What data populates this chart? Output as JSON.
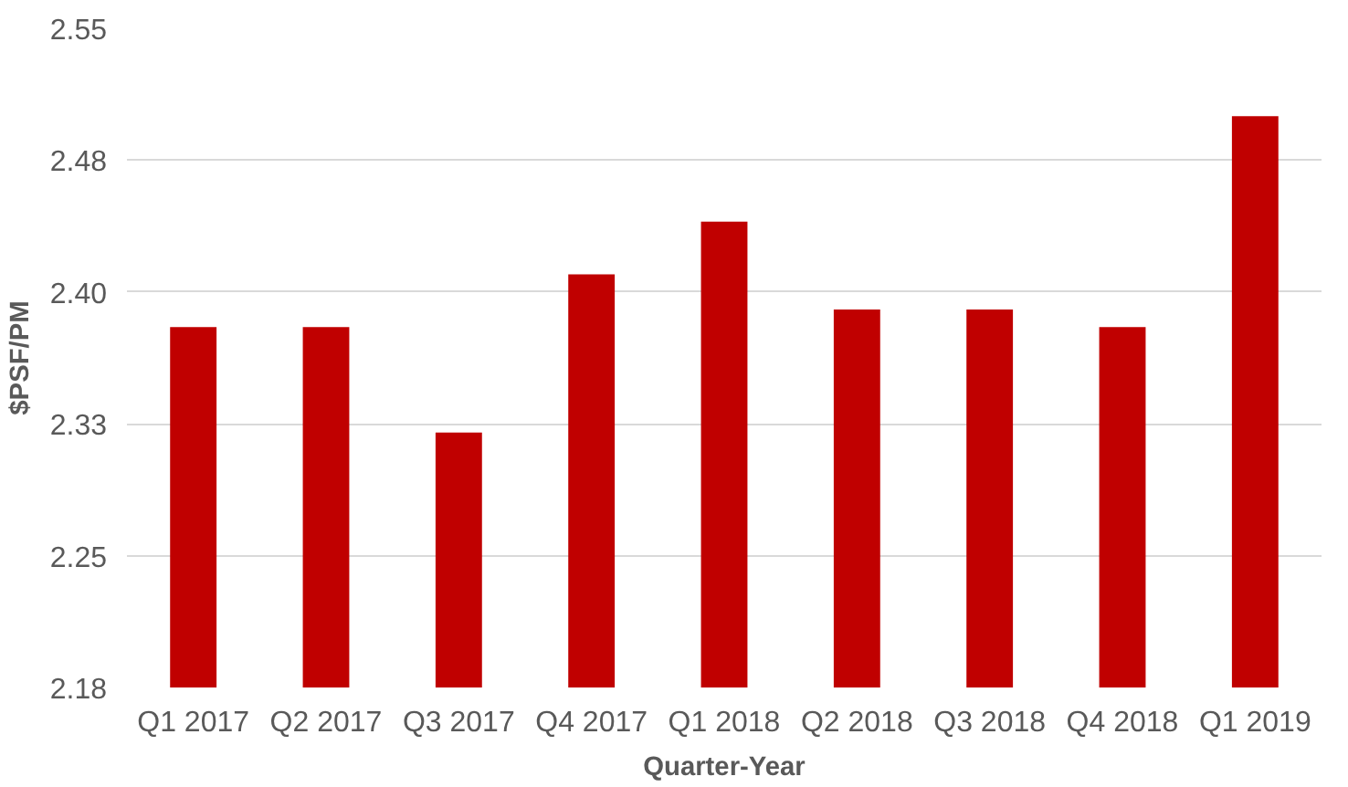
{
  "chart_data": {
    "type": "bar",
    "xlabel": "Quarter-Year",
    "ylabel": "$PSF/PM",
    "categories": [
      "Q1 2017",
      "Q2 2017",
      "Q3 2017",
      "Q4 2017",
      "Q1 2018",
      "Q2 2018",
      "Q3 2018",
      "Q4 2018",
      "Q1 2019"
    ],
    "values": [
      2.38,
      2.38,
      2.32,
      2.41,
      2.44,
      2.39,
      2.39,
      2.38,
      2.5
    ],
    "color": "#c00000",
    "ylim": [
      2.175,
      2.55
    ],
    "yticks": [
      {
        "value": 2.175,
        "label": "2.18"
      },
      {
        "value": 2.25,
        "label": "2.25"
      },
      {
        "value": 2.325,
        "label": "2.33"
      },
      {
        "value": 2.4,
        "label": "2.40"
      },
      {
        "value": 2.475,
        "label": "2.48"
      },
      {
        "value": 2.55,
        "label": "2.55"
      }
    ],
    "grid": "y"
  }
}
